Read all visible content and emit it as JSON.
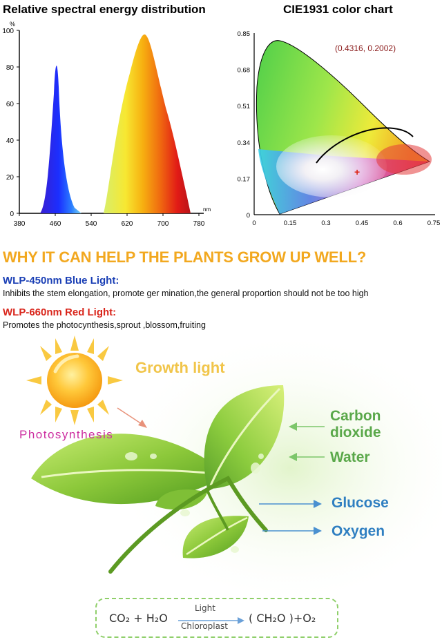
{
  "spectrum": {
    "title": "Relative spectral energy distribution",
    "y_unit": "%",
    "x_unit": "nm",
    "y_ticks": [
      "100",
      "80",
      "60",
      "40",
      "20",
      "0"
    ],
    "x_ticks": [
      "380",
      "460",
      "540",
      "620",
      "700",
      "780"
    ]
  },
  "cie": {
    "title": "CIE1931 color chart",
    "coordinate": "(0.4316,  0.2002)",
    "y_ticks": [
      "0.85",
      "0.68",
      "0.51",
      "0.34",
      "0.17",
      "0"
    ],
    "x_ticks": [
      "0",
      "0.15",
      "0.3",
      "0.45",
      "0.6",
      "0.75"
    ]
  },
  "headline": "WHY IT CAN HELP THE PLANTS GROW UP WELL?",
  "blue": {
    "heading": "WLP-450nm Blue Light:",
    "text": "Inhibits the stem elongation, promote ger mination,the general proportion should not be too high",
    "color": "#1a3fb5"
  },
  "red": {
    "heading": "WLP-660nm Red Light:",
    "text": "Promotes the photocynthesis,sprout ,blossom,fruiting",
    "color": "#d9261c"
  },
  "illustration": {
    "growth_light": "Growth light",
    "photosynthesis": "Photosynthesis",
    "carbon_dioxide": [
      "Carbon",
      "dioxide"
    ],
    "water": "Water",
    "glucose": "Glucose",
    "oxygen": "Oxygen",
    "icons": [
      "sun-icon",
      "leaf-icon",
      "arrow-icon"
    ]
  },
  "equation": {
    "left": "CO₂ + H₂O",
    "top": "Light",
    "bottom": "Chloroplast",
    "right": "( CH₂O )+O₂"
  },
  "colors": {
    "headline": "#f2a81f",
    "green_text": "#5aa84a",
    "blue_text": "#2f7fc1"
  }
}
